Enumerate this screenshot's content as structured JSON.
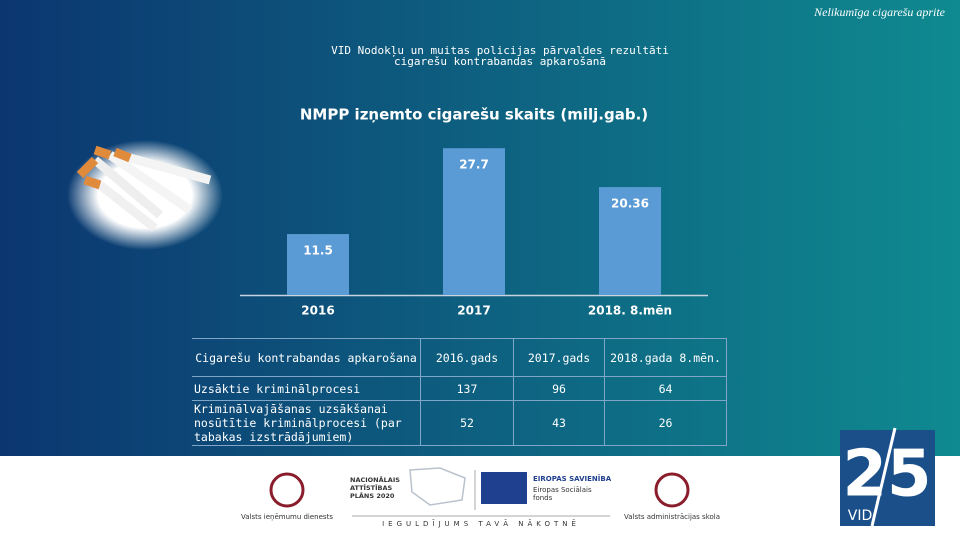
{
  "header": {
    "kicker": "Nelikumīga cigarešu aprite",
    "title_lines": [
      "VID Nodokļu un muitas policijas pārvaldes rezultāti",
      "cigarešu kontrabandas apkarošanā"
    ]
  },
  "chart_data": {
    "type": "bar",
    "title": "NMPP izņemto cigarešu skaits (milj.gab.)",
    "categories": [
      "2016",
      "2017",
      "2018. 8.mēn"
    ],
    "values": [
      11.5,
      27.7,
      20.36
    ],
    "color": "#5b9bd5",
    "ylim": [
      0,
      30
    ]
  },
  "table": {
    "header": [
      "Cigarešu kontrabandas apkarošana",
      "2016.gads",
      "2017.gads",
      "2018.gada 8.mēn."
    ],
    "rows": [
      [
        "Uzsāktie kriminālprocesi",
        137,
        96,
        64
      ],
      [
        "Kriminālvajāšanas uzsākšanai nosūtītie kriminālprocesi (par tabakas izstrādājumiem)",
        52,
        43,
        26
      ]
    ]
  },
  "footer": {
    "vid_name": "Valsts ieņēmumu dienests",
    "nap": [
      "NACIONĀLAIS",
      "ATTĪSTĪBAS",
      "PLĀNS 2020"
    ],
    "eu": [
      "EIROPAS SAVIENĪBA",
      "Eiropas Sociālais",
      "fonds"
    ],
    "motto": "IEGULDĪJUMS TAVĀ NĀKOTNĒ",
    "school": "Valsts administrācijas skola",
    "anniv": "25",
    "vid": "VID"
  }
}
